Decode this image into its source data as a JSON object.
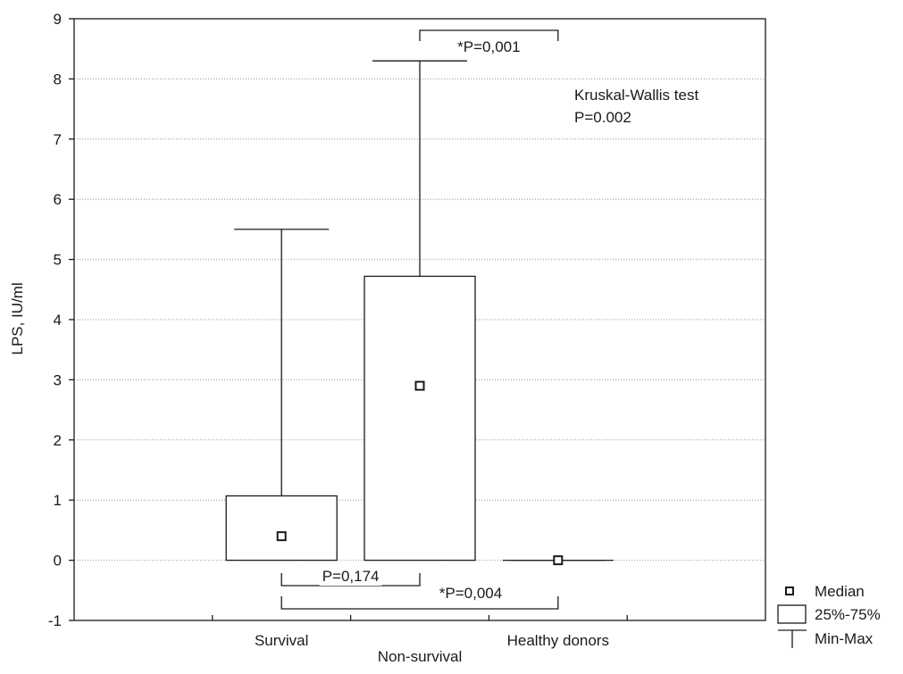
{
  "chart_data": {
    "type": "box",
    "ylabel": "LPS, IU/ml",
    "ylim": [
      -1,
      9
    ],
    "yticks": [
      -1,
      0,
      1,
      2,
      3,
      4,
      5,
      6,
      7,
      8,
      9
    ],
    "grid": "horizontal, dotted",
    "categories": [
      "Survival",
      "Non-survival",
      "Healthy donors"
    ],
    "boxes": [
      {
        "category": "Survival",
        "min": 0,
        "q1": 0,
        "median": 0.4,
        "q3": 1.07,
        "max": 5.5
      },
      {
        "category": "Non-survival",
        "min": 0,
        "q1": 0,
        "median": 2.9,
        "q3": 4.72,
        "max": 8.3
      },
      {
        "category": "Healthy donors",
        "min": 0,
        "q1": 0,
        "median": 0,
        "q3": 0,
        "max": 0
      }
    ],
    "comparisons": [
      {
        "from": "Non-survival",
        "to": "Healthy donors",
        "label": "*P=0,001",
        "position": "top"
      },
      {
        "from": "Survival",
        "to": "Non-survival",
        "label": "P=0,174",
        "position": "bottom"
      },
      {
        "from": "Survival",
        "to": "Healthy donors",
        "label": "*P=0,004",
        "position": "bottom"
      }
    ],
    "annotation": {
      "line1": "Kruskal-Wallis test",
      "line2": "P=0.002"
    },
    "legend": {
      "placement": "bottom-right, outside plot",
      "items": [
        {
          "symbol": "square-marker",
          "label": "Median"
        },
        {
          "symbol": "box",
          "label": "25%-75%"
        },
        {
          "symbol": "whisker",
          "label": "Min-Max"
        }
      ]
    },
    "colors": {
      "stroke": "#1a1a1a",
      "grid": "#9a9a9a",
      "background": "#ffffff"
    }
  }
}
